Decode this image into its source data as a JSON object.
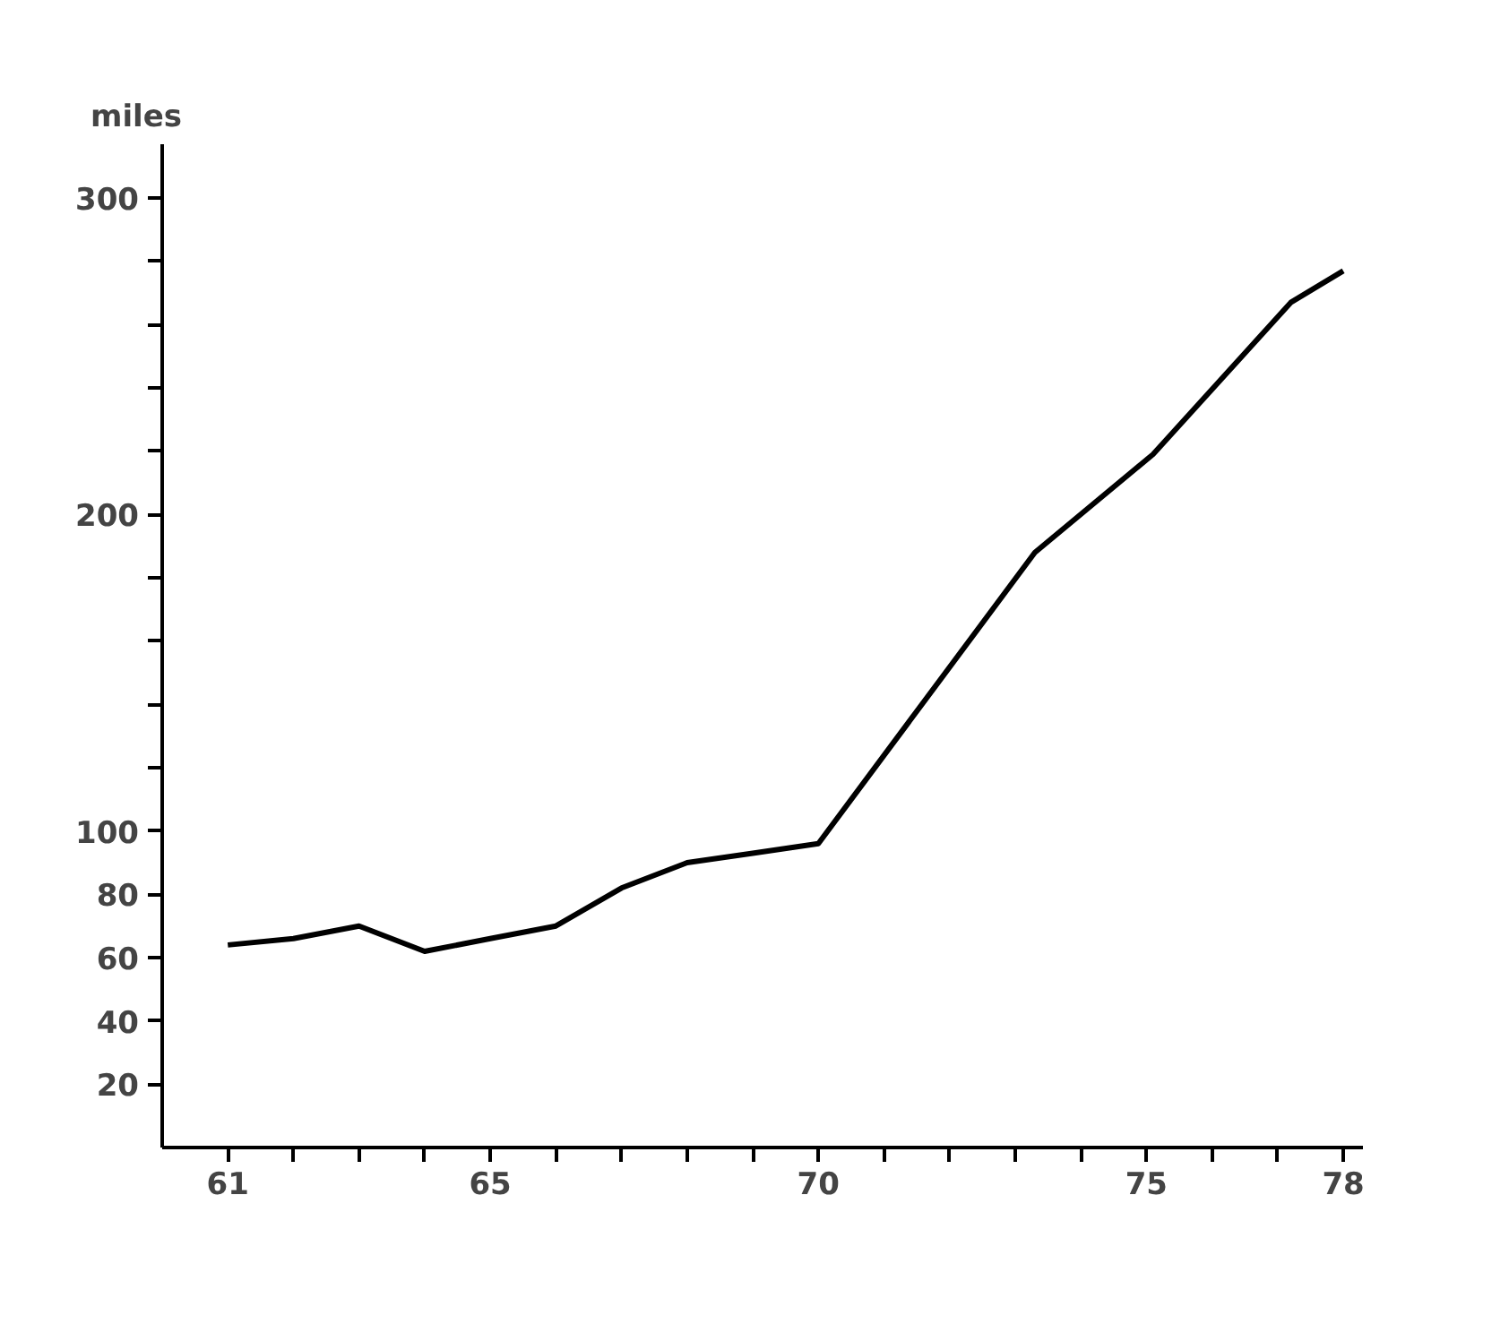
{
  "chart_data": {
    "type": "line",
    "ylabel": "miles",
    "x": [
      61,
      62,
      63,
      64,
      65,
      66,
      67,
      68,
      69,
      70,
      73.3,
      75.1,
      77.2,
      78
    ],
    "series": [
      {
        "color": "#000000",
        "values": [
          64,
          66,
          70,
          62,
          66,
          70,
          82,
          90,
          93,
          96,
          188,
          219,
          267,
          277
        ]
      }
    ],
    "xlim": [
      60,
      78.3
    ],
    "ylim": [
      0,
      317
    ],
    "xticks": [
      61,
      {
        "value": 62,
        "label": null
      },
      {
        "value": 63,
        "label": null
      },
      {
        "value": 64,
        "label": null
      },
      65,
      {
        "value": 66,
        "label": null
      },
      {
        "value": 67,
        "label": null
      },
      {
        "value": 68,
        "label": null
      },
      {
        "value": 69,
        "label": null
      },
      70,
      {
        "value": 71,
        "label": null
      },
      {
        "value": 72,
        "label": null
      },
      {
        "value": 73,
        "label": null
      },
      {
        "value": 74,
        "label": null
      },
      75,
      {
        "value": 76,
        "label": null
      },
      {
        "value": 77,
        "label": null
      },
      78
    ],
    "yticks": [
      20,
      40,
      60,
      80,
      100,
      {
        "value": 120,
        "label": null
      },
      {
        "value": 140,
        "label": null
      },
      {
        "value": 160,
        "label": null
      },
      {
        "value": 180,
        "label": null
      },
      200,
      {
        "value": 220,
        "label": null
      },
      {
        "value": 240,
        "label": null
      },
      {
        "value": 260,
        "label": null
      },
      {
        "value": 280,
        "label": null
      },
      300
    ],
    "grid": false,
    "marker": "none",
    "line_style": "solid"
  }
}
